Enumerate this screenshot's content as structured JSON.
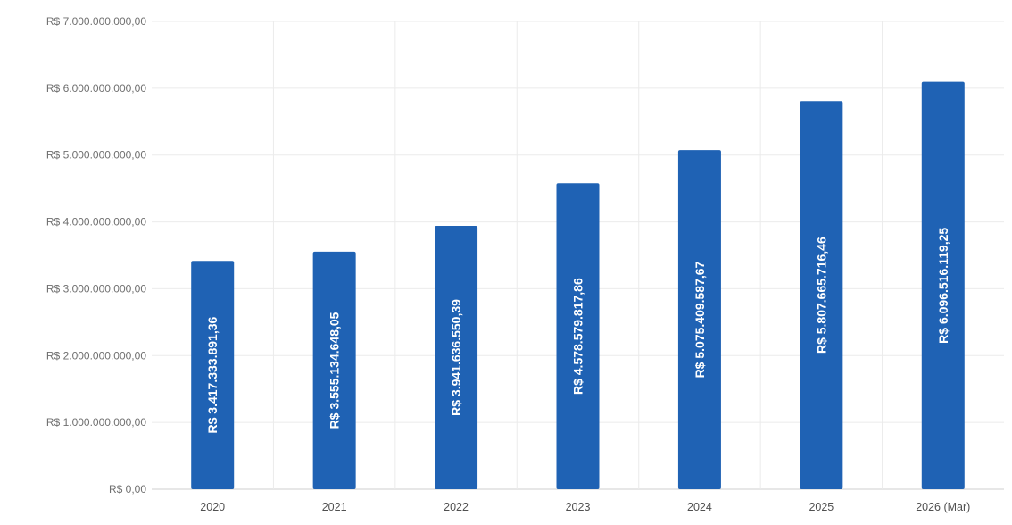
{
  "colors": {
    "bar": "#1f62b4",
    "background": "#ffffff",
    "grid": "#ebebeb",
    "axis_text": "#707070"
  },
  "chart_data": {
    "type": "bar",
    "title": "",
    "xlabel": "",
    "ylabel": "",
    "categories": [
      "2020",
      "2021",
      "2022",
      "2023",
      "2024",
      "2025",
      "2026 (Mar)"
    ],
    "values": [
      3417333891.36,
      3555134648.05,
      3941636550.39,
      4578579817.86,
      5075409587.67,
      5807665716.46,
      6096516119.25
    ],
    "data_labels": [
      "R$ 3.417.333.891,36",
      "R$ 3.555.134.648,05",
      "R$ 3.941.636.550,39",
      "R$ 4.578.579.817,86",
      "R$ 5.075.409.587,67",
      "R$ 5.807.665.716,46",
      "R$ 6.096.516.119,25"
    ],
    "ylim": [
      0,
      7000000000
    ],
    "yticks": [
      0,
      1000000000,
      2000000000,
      3000000000,
      4000000000,
      5000000000,
      6000000000,
      7000000000
    ],
    "ytick_labels": [
      "R$ 0,00",
      "R$ 1.000.000.000,00",
      "R$ 2.000.000.000,00",
      "R$ 3.000.000.000,00",
      "R$ 4.000.000.000,00",
      "R$ 5.000.000.000,00",
      "R$ 6.000.000.000,00",
      "R$ 7.000.000.000,00"
    ],
    "grid": true,
    "legend": "none",
    "data_label_orientation": "vertical"
  }
}
